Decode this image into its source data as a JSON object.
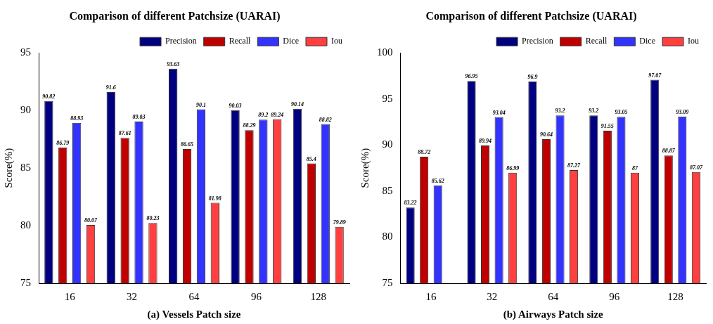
{
  "chart_data": [
    {
      "type": "bar",
      "title": "Comparison of different Patchsize (UARAI)",
      "xlabel": "(a) Vessels Patch size",
      "ylabel": "Score(%)",
      "categories": [
        "16",
        "32",
        "64",
        "96",
        "128"
      ],
      "series": [
        {
          "name": "Precision",
          "color": "#000080",
          "values": [
            90.82,
            91.6,
            93.63,
            90.03,
            90.14
          ]
        },
        {
          "name": "Recall",
          "color": "#c00000",
          "values": [
            86.79,
            87.61,
            86.65,
            88.29,
            85.4
          ]
        },
        {
          "name": "Dice",
          "color": "#3333ff",
          "values": [
            88.93,
            89.03,
            90.1,
            89.2,
            88.82
          ]
        },
        {
          "name": "Iou",
          "color": "#ff4040",
          "values": [
            80.07,
            80.23,
            81.98,
            89.24,
            79.89
          ]
        }
      ],
      "ylim": [
        75,
        95
      ],
      "yticks": [
        75,
        80,
        85,
        90,
        95
      ],
      "legend": "top right",
      "data_labels": true,
      "grid": false
    },
    {
      "type": "bar",
      "title": "Comparison of different Patchsize (UARAI)",
      "xlabel": "(b) Airways Patch size",
      "ylabel": "Score(%)",
      "categories": [
        "16",
        "32",
        "64",
        "96",
        "128"
      ],
      "series": [
        {
          "name": "Precision",
          "color": "#000080",
          "values": [
            83.22,
            96.95,
            96.9,
            93.2,
            97.07
          ]
        },
        {
          "name": "Recall",
          "color": "#c00000",
          "values": [
            88.72,
            89.94,
            90.64,
            91.55,
            88.87
          ]
        },
        {
          "name": "Dice",
          "color": "#3333ff",
          "values": [
            85.62,
            93.04,
            93.2,
            93.05,
            93.09
          ]
        },
        {
          "name": "Iou",
          "color": "#ff4040",
          "values": [
            null,
            86.99,
            87.27,
            87,
            87.07
          ]
        }
      ],
      "ylim": [
        75,
        100
      ],
      "yticks": [
        75,
        80,
        85,
        90,
        95,
        100
      ],
      "legend": "top right",
      "data_labels": true,
      "grid": false
    }
  ]
}
